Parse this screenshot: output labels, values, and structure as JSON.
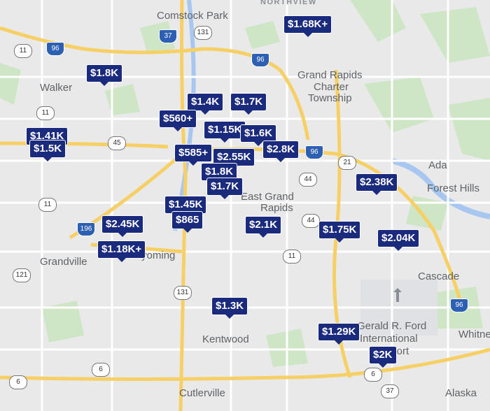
{
  "map": {
    "places": [
      "NORTHVIEW",
      "Comstock Park",
      "Walker",
      "Grand Rapids",
      "Charter",
      "Township",
      "East Grand",
      "Rapids",
      "Ada",
      "Forest Hills",
      "Cascade",
      "Grandville",
      "Wyoming",
      "Kentwood",
      "Gerald R. Ford",
      "International",
      "Airport",
      "Cutlerville",
      "Alaska",
      "Whitney"
    ],
    "shields": [
      "37",
      "131",
      "11",
      "96",
      "96",
      "11",
      "45",
      "44",
      "21",
      "11",
      "196",
      "44",
      "11",
      "121",
      "131",
      "96",
      "6",
      "6",
      "6",
      "37",
      "96"
    ],
    "price_markers": [
      "$1.68K+",
      "$1.8K",
      "$1.41K",
      "$1.5K",
      "$1.4K",
      "$1.7K",
      "$560+",
      "$1.15K",
      "$1.6K",
      "$2.8K",
      "$585+",
      "$2.55K",
      "$1.8K",
      "$1.7K",
      "$2.38K",
      "$1.45K",
      "$865",
      "$2.45K",
      "$2.1K",
      "$1.18K+",
      "$1.75K",
      "$2.04K",
      "$1.3K",
      "$1.29K",
      "$2K"
    ]
  }
}
